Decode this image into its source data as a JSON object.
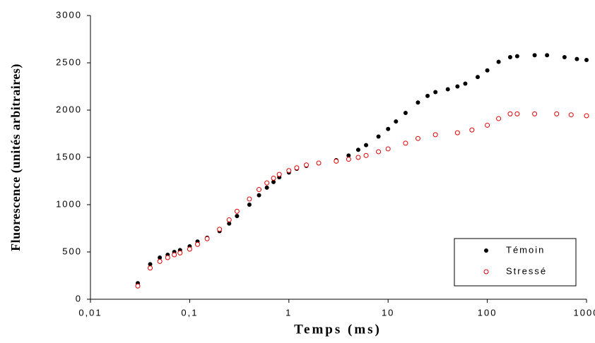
{
  "chart_data": {
    "type": "scatter",
    "x_label": "Temps (ms)",
    "y_label": "Fluorescence (unités arbitraires)",
    "log_x": true,
    "xlim": [
      0.01,
      1000
    ],
    "xticks": [
      {
        "value": 0.01,
        "label": "0,01"
      },
      {
        "value": 0.1,
        "label": "0,1"
      },
      1,
      10,
      100,
      1000
    ],
    "ylim": [
      0,
      3000
    ],
    "yticks": [
      0,
      500,
      1000,
      1500,
      2000,
      2500,
      3000
    ],
    "grid": false,
    "legend": "lower right",
    "series": [
      {
        "name": "Témoin",
        "color": "#000000",
        "marker": "filled",
        "x": [
          0.03,
          0.04,
          0.05,
          0.06,
          0.07,
          0.08,
          0.1,
          0.12,
          0.15,
          0.2,
          0.25,
          0.3,
          0.4,
          0.5,
          0.6,
          0.7,
          0.8,
          1.0,
          1.2,
          1.5,
          2.0,
          3,
          4,
          5,
          6,
          8,
          10,
          12,
          15,
          20,
          25,
          30,
          40,
          50,
          60,
          80,
          100,
          130,
          170,
          200,
          300,
          400,
          600,
          800,
          1000
        ],
        "values": [
          170,
          370,
          440,
          470,
          500,
          520,
          560,
          610,
          650,
          720,
          800,
          880,
          1000,
          1100,
          1180,
          1240,
          1290,
          1340,
          1380,
          1410,
          1440,
          1470,
          1520,
          1580,
          1630,
          1720,
          1800,
          1880,
          1970,
          2080,
          2150,
          2190,
          2220,
          2250,
          2280,
          2350,
          2420,
          2510,
          2560,
          2570,
          2580,
          2580,
          2560,
          2540,
          2530
        ]
      },
      {
        "name": "Stressé",
        "color": "#e00000",
        "marker": "open",
        "x": [
          0.03,
          0.04,
          0.05,
          0.06,
          0.07,
          0.08,
          0.1,
          0.12,
          0.15,
          0.2,
          0.25,
          0.3,
          0.4,
          0.5,
          0.6,
          0.7,
          0.8,
          1.0,
          1.2,
          1.5,
          2.0,
          3,
          4,
          5,
          6,
          8,
          10,
          15,
          20,
          30,
          50,
          70,
          100,
          130,
          170,
          200,
          300,
          500,
          700,
          1000
        ],
        "values": [
          140,
          330,
          400,
          440,
          470,
          490,
          530,
          580,
          640,
          740,
          840,
          930,
          1060,
          1160,
          1230,
          1280,
          1320,
          1360,
          1390,
          1420,
          1440,
          1460,
          1480,
          1500,
          1520,
          1560,
          1590,
          1650,
          1700,
          1740,
          1760,
          1790,
          1840,
          1910,
          1960,
          1960,
          1960,
          1960,
          1950,
          1940
        ]
      }
    ]
  }
}
